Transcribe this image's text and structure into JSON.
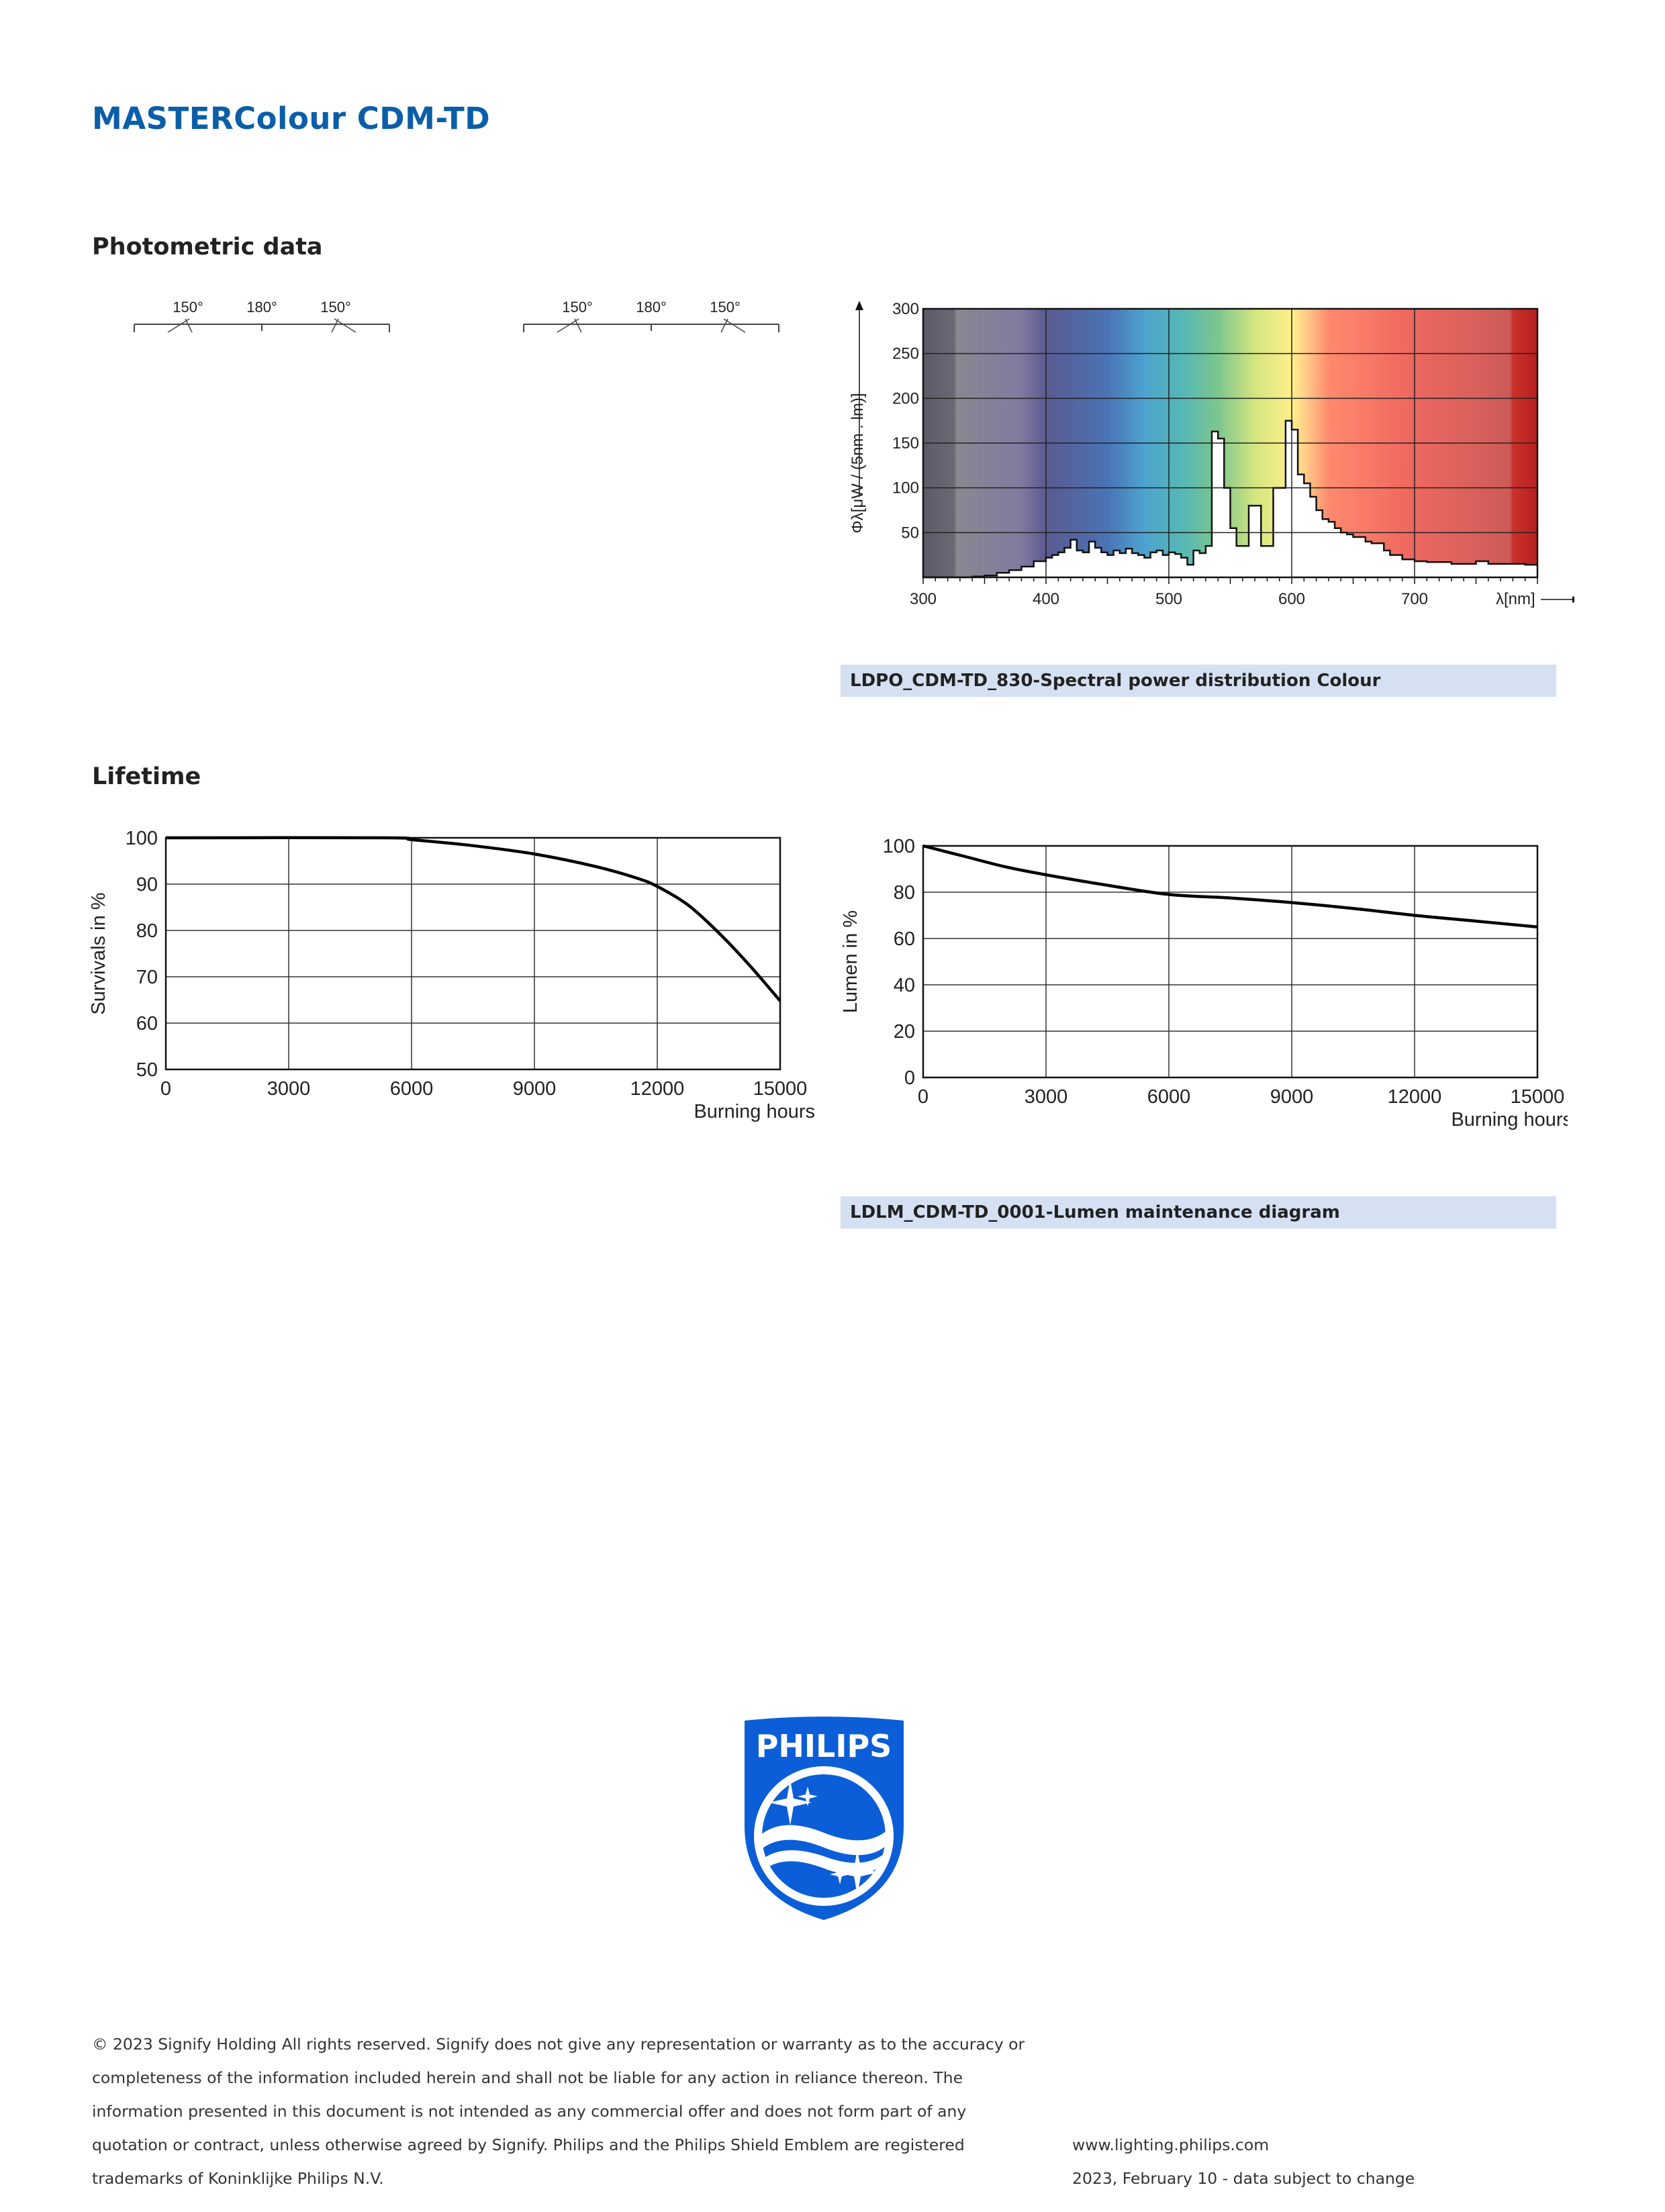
{
  "title": "MASTERColour CDM-TD",
  "sections": {
    "photometric": "Photometric data",
    "lifetime": "Lifetime"
  },
  "polar": {
    "left_angle": "150°",
    "center_angle": "180°",
    "right_angle": "150°"
  },
  "spectral": {
    "caption": "LDPO_CDM-TD_830-Spectral power distribution Colour",
    "chart_data": {
      "type": "area",
      "xlabel": "λ[nm]",
      "ylabel": "Φλ[μW / (5nm . lm)]",
      "xlim": [
        300,
        800
      ],
      "ylim": [
        0,
        300
      ],
      "x_ticks": [
        "300",
        "400",
        "500",
        "600",
        "700"
      ],
      "y_ticks": [
        "50",
        "100",
        "150",
        "200",
        "250",
        "300"
      ],
      "x": [
        300,
        310,
        320,
        330,
        340,
        350,
        360,
        370,
        380,
        390,
        400,
        405,
        410,
        415,
        420,
        425,
        430,
        435,
        440,
        445,
        450,
        455,
        460,
        465,
        470,
        475,
        480,
        485,
        490,
        495,
        500,
        505,
        510,
        515,
        520,
        525,
        530,
        535,
        540,
        545,
        550,
        555,
        560,
        565,
        570,
        575,
        580,
        585,
        590,
        595,
        600,
        605,
        610,
        615,
        620,
        625,
        630,
        635,
        640,
        645,
        650,
        655,
        660,
        665,
        670,
        675,
        680,
        690,
        700,
        710,
        720,
        730,
        740,
        750,
        760,
        770,
        780,
        790,
        800
      ],
      "series": [
        {
          "values": [
            0,
            0,
            0,
            0,
            1,
            2,
            5,
            8,
            12,
            18,
            22,
            25,
            28,
            33,
            42,
            30,
            28,
            40,
            33,
            28,
            25,
            30,
            27,
            32,
            27,
            25,
            22,
            28,
            30,
            25,
            28,
            26,
            22,
            14,
            30,
            27,
            35,
            163,
            155,
            100,
            55,
            35,
            35,
            80,
            80,
            35,
            35,
            100,
            100,
            175,
            165,
            115,
            105,
            90,
            75,
            65,
            62,
            55,
            50,
            48,
            45,
            45,
            40,
            38,
            38,
            30,
            25,
            20,
            18,
            17,
            17,
            15,
            15,
            18,
            15,
            15,
            15,
            14,
            14
          ]
        }
      ]
    }
  },
  "survival": {
    "chart_data": {
      "type": "line",
      "xlabel": "Burning hours",
      "ylabel": "Survivals in %",
      "xlim": [
        0,
        15000
      ],
      "ylim": [
        50,
        100
      ],
      "x_ticks": [
        "0",
        "3000",
        "6000",
        "9000",
        "12000",
        "15000"
      ],
      "y_ticks": [
        "50",
        "60",
        "70",
        "80",
        "90",
        "100"
      ],
      "series": [
        {
          "x": [
            0,
            5400,
            6000,
            7500,
            9000,
            10500,
            11500,
            12000,
            12750,
            13500,
            14250,
            15000
          ],
          "values": [
            100,
            100,
            99.6,
            98.3,
            96.5,
            93.8,
            91.3,
            89.5,
            85.5,
            79.5,
            72.5,
            64.8
          ]
        }
      ]
    }
  },
  "lumen": {
    "caption": "LDLM_CDM-TD_0001-Lumen maintenance diagram",
    "chart_data": {
      "type": "line",
      "xlabel": "Burning hours",
      "ylabel": "Lumen in %",
      "xlim": [
        0,
        15000
      ],
      "ylim": [
        0,
        100
      ],
      "x_ticks": [
        "0",
        "3000",
        "6000",
        "9000",
        "12000",
        "15000"
      ],
      "y_ticks": [
        "0",
        "20",
        "40",
        "60",
        "80",
        "100"
      ],
      "series": [
        {
          "x": [
            0,
            1000,
            2000,
            3000,
            4500,
            6000,
            7500,
            9000,
            10500,
            12000,
            13500,
            15000
          ],
          "values": [
            100,
            95.5,
            91,
            87.5,
            83,
            79,
            77.5,
            75.5,
            73,
            70,
            67.5,
            65
          ]
        }
      ]
    }
  },
  "logo": {
    "text": "PHILIPS",
    "color": "#0b5ed7"
  },
  "footer": {
    "legal": [
      "© 2023 Signify Holding All rights reserved. Signify does not give any representation or warranty as to the accuracy or",
      "completeness of the information included herein and shall not be liable for any action in reliance thereon. The",
      "information presented in this document is not intended as any commercial offer and does not form part of any",
      "quotation or contract, unless otherwise agreed by Signify. Philips and the Philips Shield Emblem are registered",
      "trademarks of Koninklijke Philips N.V."
    ],
    "website": "www.lighting.philips.com",
    "date": "2023, February 10 - data subject to change"
  }
}
